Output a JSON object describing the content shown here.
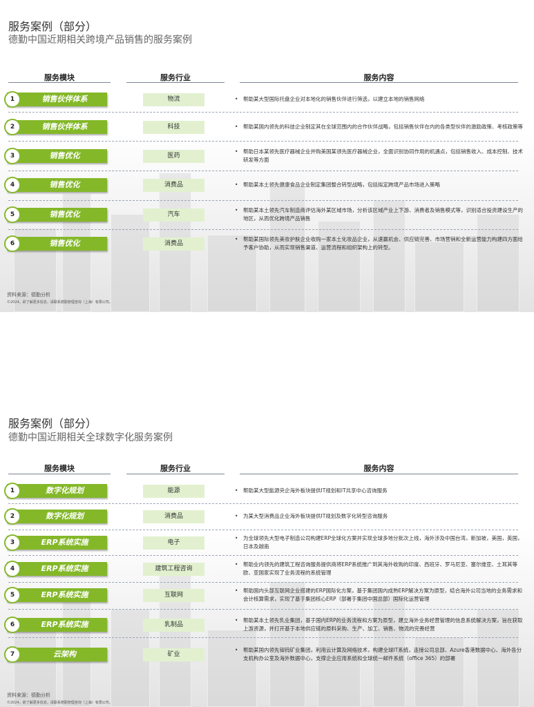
{
  "headers": {
    "module": "服务模块",
    "industry": "服务行业",
    "content": "服务内容"
  },
  "colors": {
    "accent_green": "#84b829",
    "industry_bg": "#e2f0cf"
  },
  "slides": [
    {
      "title": "服务案例（部分）",
      "subtitle": "德勤中国近期相关跨境产品销售的服务案例",
      "rows": [
        {
          "num": "1",
          "module": "销售伙伴体系",
          "industry": "物流",
          "content": "帮助某大型国际托盘企业对本地化的销售伙伴进行筛选，以建立本地的销售网络"
        },
        {
          "num": "2",
          "module": "销售伙伴体系",
          "industry": "科技",
          "content": "帮助某国内领先的科技企业制定其在全球范围内的合作伙伴战略，包括销售伙伴在内的各类型伙伴的激励政策、考核政策等"
        },
        {
          "num": "3",
          "module": "销售优化",
          "industry": "医药",
          "content": "帮助日本某领先医疗器械企业并购美国某领先医疗器械企业，全面识别协同作用的机遇点，包括销售收入、成本控制、技术研发等方面"
        },
        {
          "num": "4",
          "module": "销售优化",
          "industry": "消费品",
          "content": "帮助某本土领先健康食品企业制定集团整合转型战略，包括拟定跨境产品市场进入策略"
        },
        {
          "num": "5",
          "module": "销售优化",
          "industry": "汽车",
          "content": "帮助某本土领先汽车制造商评估海外某区域市场，分析该区域产业上下游、消费者及销售模式等，识别适合投资建设生产的地区，从而优化跨境产品销售"
        },
        {
          "num": "6",
          "module": "销售优化",
          "industry": "消费品",
          "content": "帮助某国际领先美妆护肤企业收购一家本土化妆品企业，从速赢机会、供应链完善、市场营销和全新运营能力构建四方面给予客户协助，从而实现销售渠道、运营流程和组织架构上的转型。"
        }
      ],
      "source": "资料来源：德勤分析",
      "copyright": "©2024。欲了解更多信息，请联系德勤管理咨询（上海）有限公司。"
    },
    {
      "title": "服务案例（部分）",
      "subtitle": "德勤中国近期相关全球数字化服务案例",
      "rows": [
        {
          "num": "1",
          "module": "数字化规划",
          "industry": "能源",
          "content": "帮助某大型能源央企海外板块提供IT规划和IT共享中心咨询服务"
        },
        {
          "num": "2",
          "module": "数字化规划",
          "industry": "消费品",
          "content": "为某大型消费品企业海外板块提供IT规划及数字化转型咨询服务"
        },
        {
          "num": "3",
          "module": "ERP系统实施",
          "industry": "电子",
          "content": "为全球领先大型电子制造公司构建ERP全球化方案并实现全球多地分批次上线，海外涉及中国台湾，新加坡，美国，英国，日本及越南"
        },
        {
          "num": "4",
          "module": "ERP系统实施",
          "industry": "建筑工程咨询",
          "content": "帮助业内领先的建筑工程咨询服务提供商将ERP系统推广到其海外收购的印度、西班牙、罗马尼亚、塞尔维亚、土耳其等欧、亚国家实现了业务流程的系统管理"
        },
        {
          "num": "5",
          "module": "ERP系统实施",
          "industry": "互联网",
          "content": "帮助国内头部互联网企业搭建的ERP国际化方案，基于集团国内成熟ERP解决方案为原型，结合海外公司当地的业务需求和会计核算需求，实现了基于集团核心ERP（部署于集团中国总部）国际化运营管理"
        },
        {
          "num": "6",
          "module": "ERP系统实施",
          "industry": "乳制品",
          "content": "帮助某本土领先乳业集团，基于国内ERP的业务流程和方案为原型，建立海外业务经营管理的信息系统解决方案，旨在获取上游资源，并打开基于本地供应链的原料采购、生产、加工、销售、物流的完善经营"
        },
        {
          "num": "7",
          "module": "云架构",
          "industry": "矿业",
          "content": "帮助某国内领先钼钨矿业集团，利用云计算及网络技术，构建全球IT系统，连接公司总部、Azure香港数据中心、海外各分支机构办公室及海外数据中心，支撑企业应用系统和全球统一邮件系统（office 365）的部署"
        }
      ],
      "source": "资料来源：德勤分析",
      "copyright": "©2024。欲了解更多信息，请联系德勤管理咨询（上海）有限公司。"
    }
  ]
}
